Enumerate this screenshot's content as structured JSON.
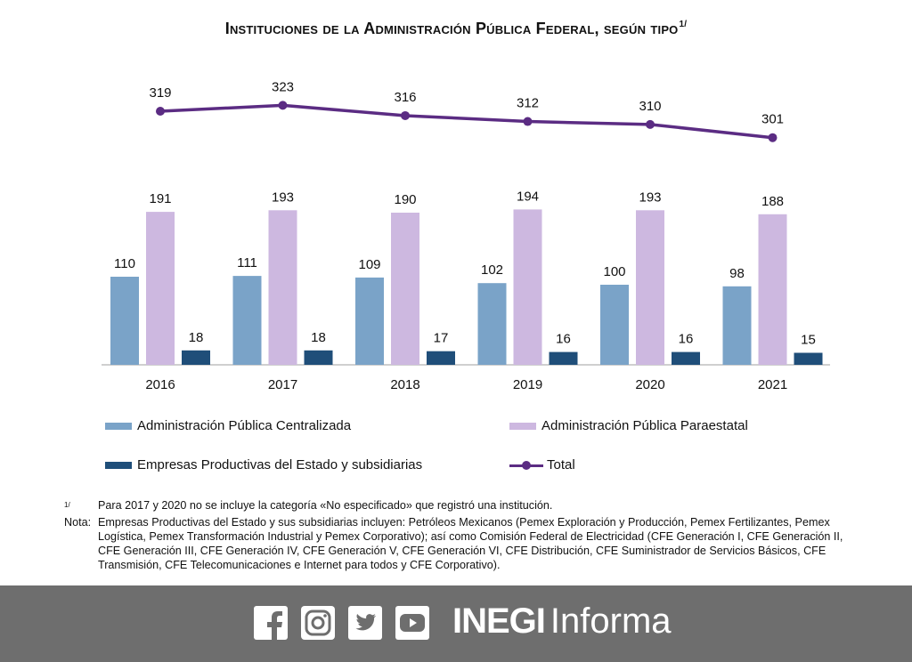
{
  "title": "Instituciones de la Administración Pública Federal, según tipo",
  "title_note": "1/",
  "colors": {
    "centralizada": "#7aa3c8",
    "paraestatal": "#cdb8e0",
    "empresas": "#1f4e79",
    "total": "#5b2c83",
    "axis": "#bfbfbf",
    "footer": "#6e6e6e"
  },
  "chart_data": {
    "type": "bar",
    "categories": [
      "2016",
      "2017",
      "2018",
      "2019",
      "2020",
      "2021"
    ],
    "series": [
      {
        "name": "Administración Pública Centralizada",
        "values": [
          110,
          111,
          109,
          102,
          100,
          98
        ]
      },
      {
        "name": "Administración Pública Paraestatal",
        "values": [
          191,
          193,
          190,
          194,
          193,
          188
        ]
      },
      {
        "name": "Empresas Productivas del Estado y subsidiarias",
        "values": [
          18,
          18,
          17,
          16,
          16,
          15
        ]
      }
    ],
    "line_series": {
      "name": "Total",
      "values": [
        319,
        323,
        316,
        312,
        310,
        301
      ]
    },
    "legend": [
      {
        "label": "Administración Pública Centralizada",
        "key": "centralizada",
        "kind": "bar"
      },
      {
        "label": "Administración Pública Paraestatal",
        "key": "paraestatal",
        "kind": "bar"
      },
      {
        "label": "Empresas Productivas del Estado y subsidiarias",
        "key": "empresas",
        "kind": "bar"
      },
      {
        "label": "Total",
        "key": "total",
        "kind": "line"
      }
    ]
  },
  "notes": {
    "footnote_key": "1/",
    "footnote_text": "Para 2017 y 2020 no se incluye la categoría «No especificado» que registró una institución.",
    "nota_key": "Nota:",
    "nota_text": "Empresas Productivas del Estado y sus subsidiarias incluyen: Petróleos Mexicanos (Pemex Exploración y Producción, Pemex Fertilizantes, Pemex Logística, Pemex Transformación Industrial y Pemex Corporativo); así como Comisión Federal de Electricidad (CFE Generación I, CFE Generación II, CFE Generación III, CFE Generación IV, CFE Generación V, CFE Generación VI, CFE Distribución, CFE Suministrador de Servicios Básicos, CFE Transmisión, CFE Telecomunicaciones e Internet para todos y CFE Corporativo)."
  },
  "footer": {
    "social_icons": [
      "facebook-icon",
      "instagram-icon",
      "twitter-icon",
      "youtube-icon"
    ],
    "brand_bold": "INEGI",
    "brand_regular": "Informa"
  }
}
